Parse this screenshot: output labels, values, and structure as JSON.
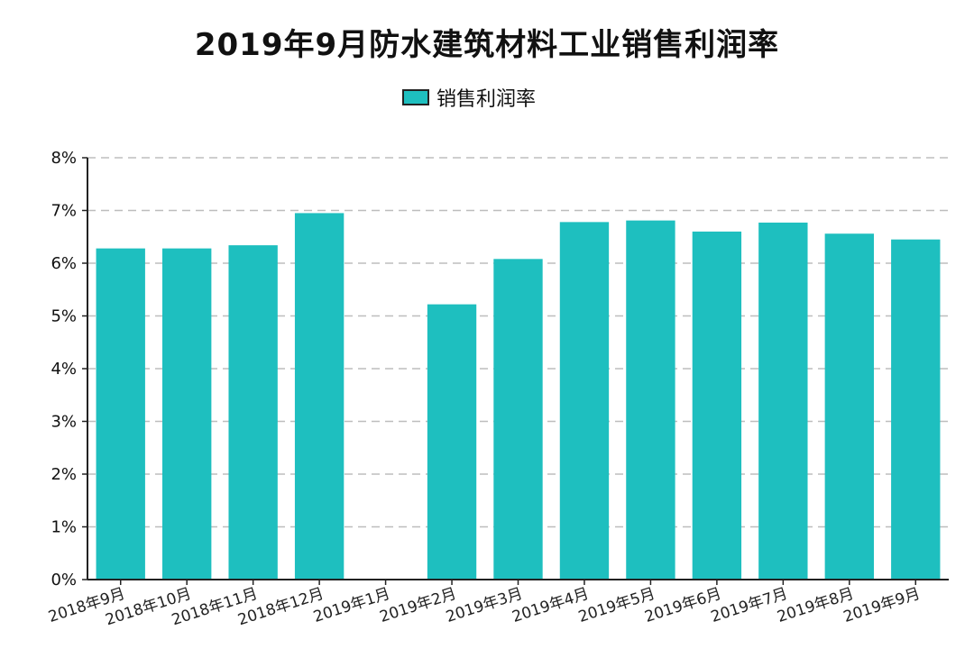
{
  "chart_data": {
    "type": "bar",
    "title": "2019年9月防水建筑材料工业销售利润率",
    "legend": {
      "position": "top-center",
      "entries": [
        "销售利润率"
      ]
    },
    "categories": [
      "2018年9月",
      "2018年10月",
      "2018年11月",
      "2018年12月",
      "2019年1月",
      "2019年2月",
      "2019年3月",
      "2019年4月",
      "2019年5月",
      "2019年6月",
      "2019年7月",
      "2019年8月",
      "2019年9月"
    ],
    "series": [
      {
        "name": "销售利润率",
        "color": "#1ebfbf",
        "values": [
          6.28,
          6.28,
          6.34,
          6.95,
          null,
          5.22,
          6.08,
          6.78,
          6.81,
          6.6,
          6.77,
          6.56,
          6.45
        ]
      }
    ],
    "ylim": [
      0,
      8
    ],
    "yticks": [
      "0%",
      "1%",
      "2%",
      "3%",
      "4%",
      "5%",
      "6%",
      "7%",
      "8%"
    ],
    "grid": true,
    "xlabel": "",
    "ylabel": ""
  }
}
